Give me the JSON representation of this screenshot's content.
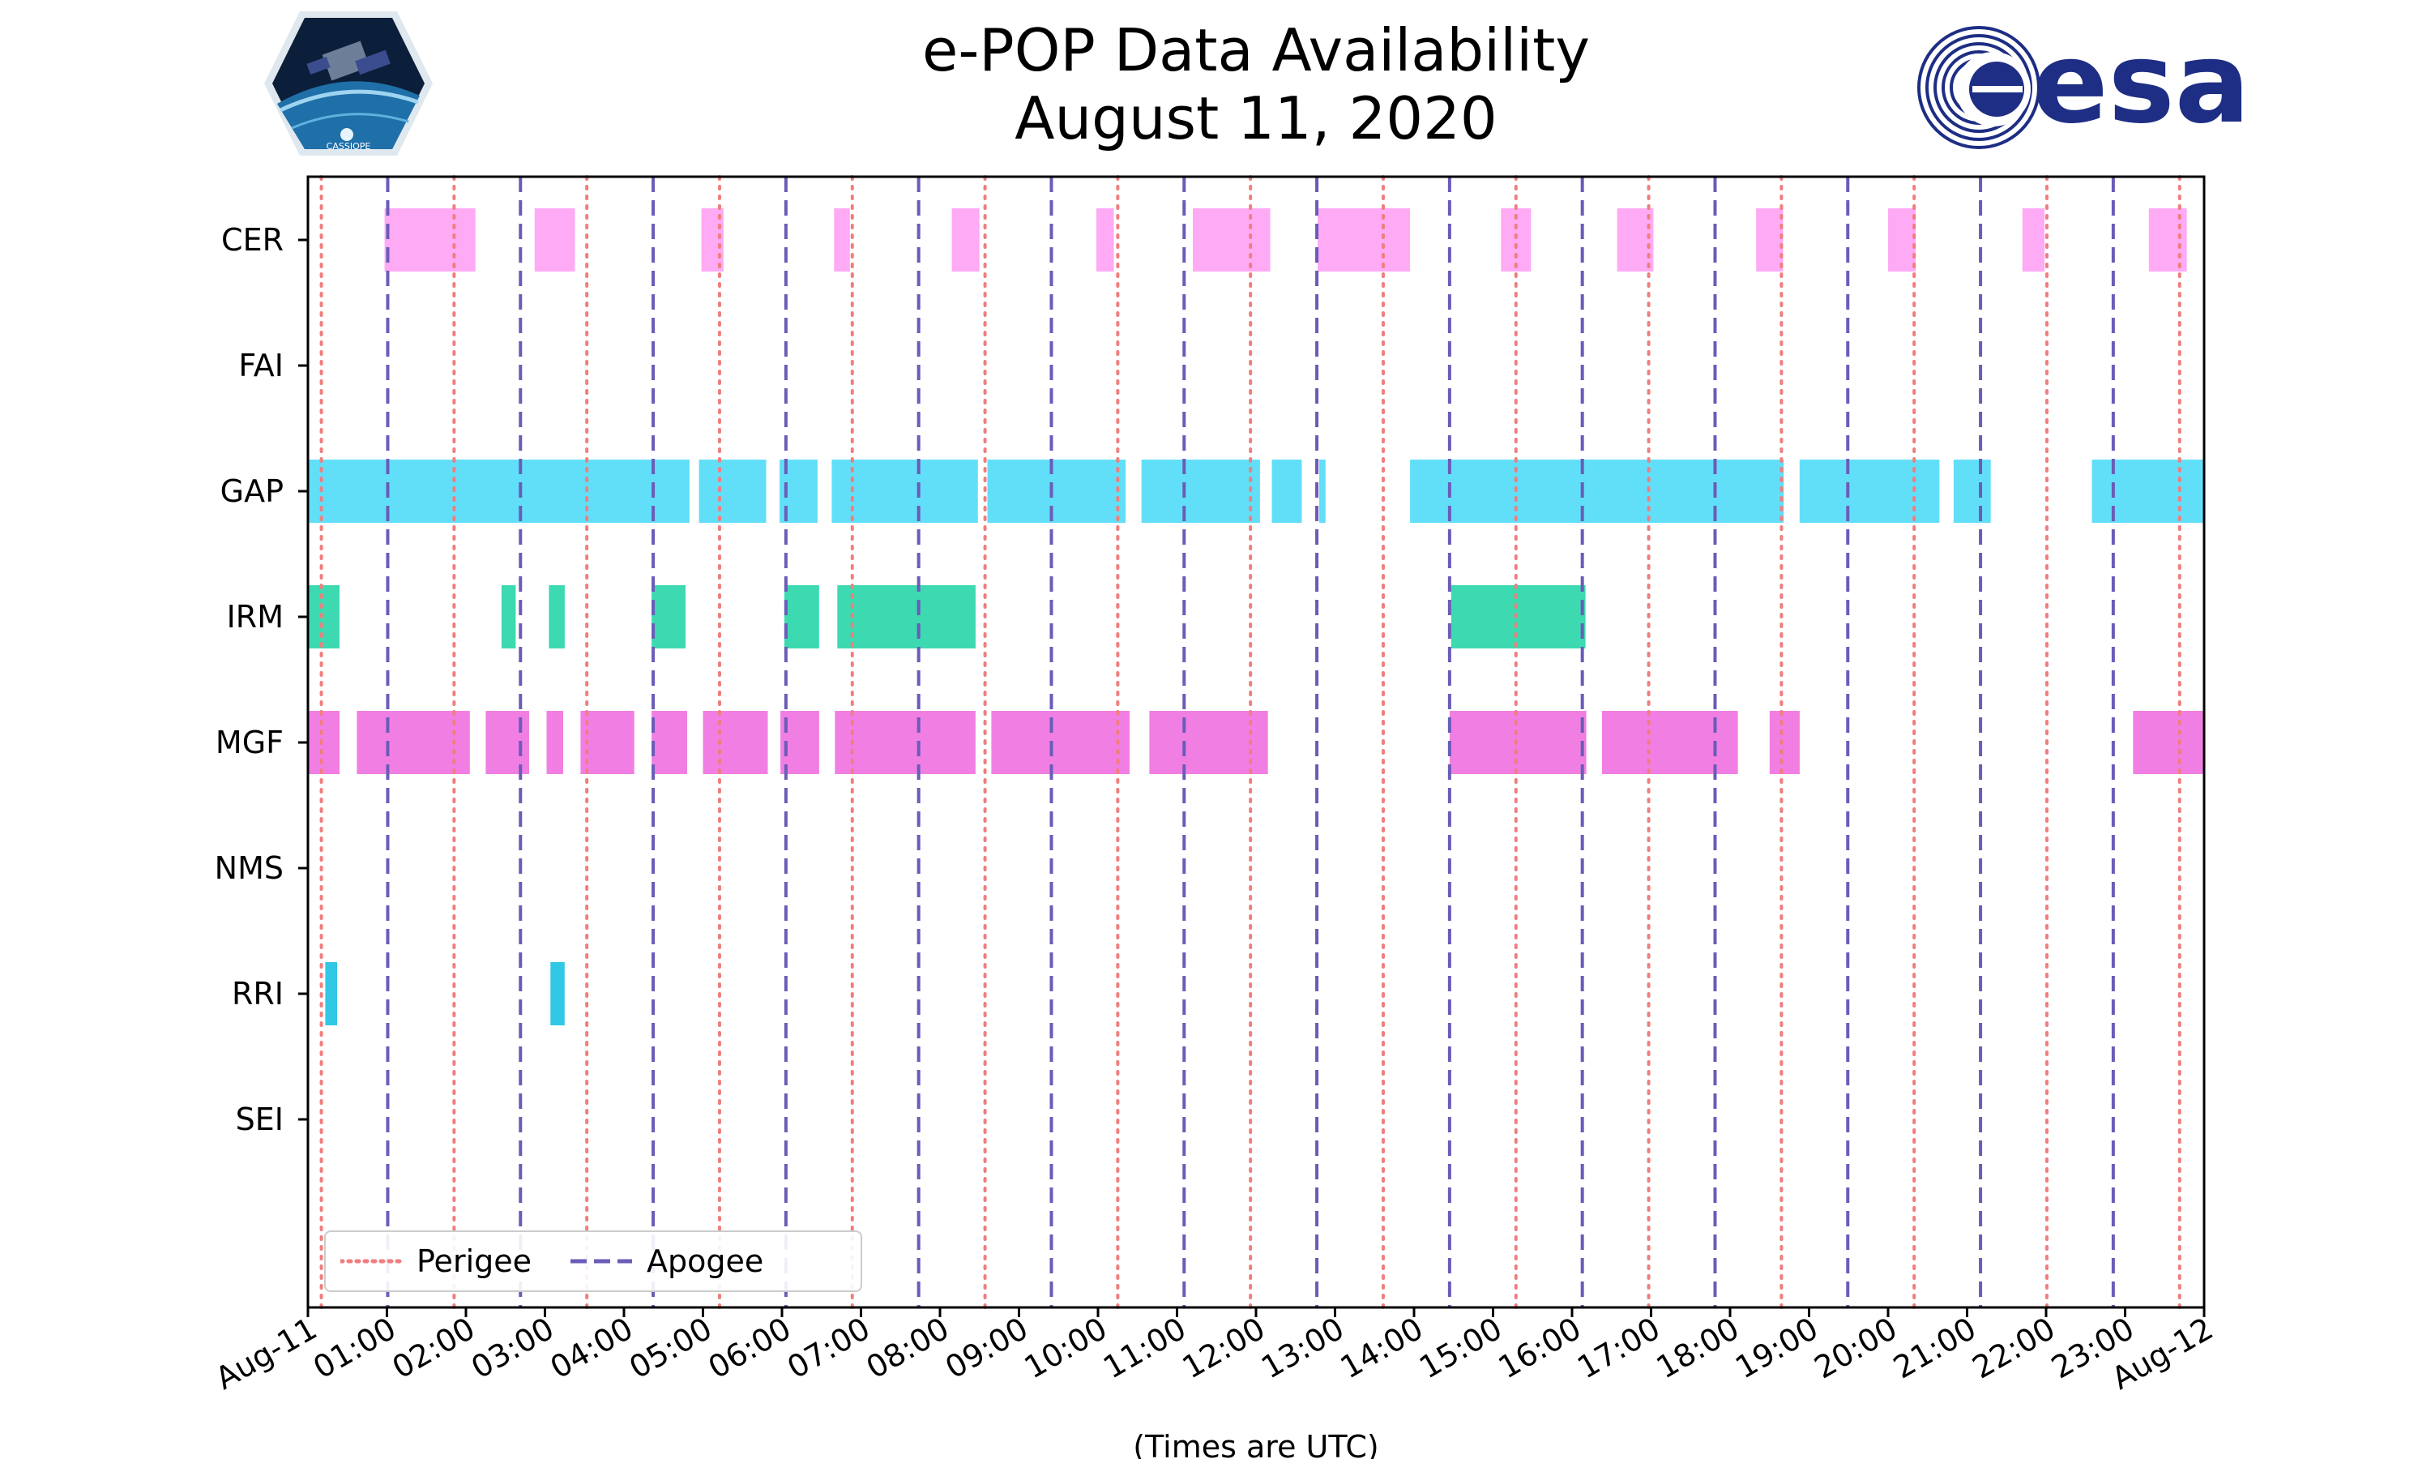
{
  "header": {
    "title_line1": "e-POP Data Availability",
    "title_line2": "August 11, 2020",
    "left_logo": {
      "icon": "cassiope-mission-logo",
      "text": "CASSIOPE"
    },
    "right_logo": {
      "icon": "esa-logo",
      "text": "esa"
    }
  },
  "legend": {
    "perigee_label": "Perigee",
    "apogee_label": "Apogee"
  },
  "colors": {
    "perigee": "#f07e7e",
    "apogee": "#6a5cb8",
    "CER": "#ffaaf5",
    "GAP": "#62dff8",
    "IRM": "#3dd9b0",
    "MGF": "#f17fe3",
    "RRI": "#31c8e5"
  },
  "chart_data": {
    "type": "timeline",
    "title": "e-POP Data Availability\nAugust 11, 2020",
    "xlabel": "(Times are UTC)",
    "xlim": [
      0,
      24
    ],
    "x_tick_labels": [
      "Aug-11",
      "01:00",
      "02:00",
      "03:00",
      "04:00",
      "05:00",
      "06:00",
      "07:00",
      "08:00",
      "09:00",
      "10:00",
      "11:00",
      "12:00",
      "13:00",
      "14:00",
      "15:00",
      "16:00",
      "17:00",
      "18:00",
      "19:00",
      "20:00",
      "21:00",
      "22:00",
      "23:00",
      "Aug-12"
    ],
    "instruments": [
      "CER",
      "FAI",
      "GAP",
      "IRM",
      "MGF",
      "NMS",
      "RRI",
      "SEI"
    ],
    "perigee_hours": [
      0.17,
      1.85,
      3.53,
      5.21,
      6.89,
      8.57,
      10.25,
      11.93,
      13.61,
      15.29,
      16.97,
      18.65,
      20.33,
      22.01,
      23.69
    ],
    "apogee_hours": [
      1.01,
      2.69,
      4.37,
      6.05,
      7.73,
      9.41,
      11.09,
      12.77,
      14.45,
      16.13,
      17.81,
      19.49,
      21.17,
      22.85
    ],
    "intervals": {
      "CER": [
        [
          0.97,
          2.12
        ],
        [
          2.87,
          3.38
        ],
        [
          4.98,
          5.26
        ],
        [
          6.66,
          6.86
        ],
        [
          8.15,
          8.5
        ],
        [
          9.98,
          10.2
        ],
        [
          11.2,
          12.18
        ],
        [
          12.78,
          13.95
        ],
        [
          15.1,
          15.48
        ],
        [
          16.57,
          17.03
        ],
        [
          18.33,
          18.67
        ],
        [
          20.0,
          20.35
        ],
        [
          21.7,
          21.98
        ],
        [
          23.3,
          23.78
        ]
      ],
      "FAI": [],
      "GAP": [
        [
          0.0,
          4.83
        ],
        [
          4.95,
          5.8
        ],
        [
          5.97,
          6.45
        ],
        [
          6.63,
          8.48
        ],
        [
          8.6,
          10.35
        ],
        [
          10.55,
          12.05
        ],
        [
          12.2,
          12.58
        ],
        [
          12.8,
          12.88
        ],
        [
          13.95,
          18.68
        ],
        [
          18.88,
          20.65
        ],
        [
          20.83,
          21.3
        ],
        [
          22.58,
          24.0
        ]
      ],
      "IRM": [
        [
          0.0,
          0.4
        ],
        [
          2.45,
          2.63
        ],
        [
          3.05,
          3.25
        ],
        [
          4.35,
          4.78
        ],
        [
          6.03,
          6.47
        ],
        [
          6.7,
          8.45
        ],
        [
          14.47,
          16.17
        ]
      ],
      "MGF": [
        [
          0.0,
          0.4
        ],
        [
          0.62,
          2.05
        ],
        [
          2.25,
          2.8
        ],
        [
          3.02,
          3.23
        ],
        [
          3.45,
          4.13
        ],
        [
          4.35,
          4.8
        ],
        [
          5.0,
          5.82
        ],
        [
          5.98,
          6.47
        ],
        [
          6.67,
          8.45
        ],
        [
          8.65,
          10.4
        ],
        [
          10.65,
          12.15
        ],
        [
          14.45,
          16.18
        ],
        [
          16.38,
          18.1
        ],
        [
          18.5,
          18.88
        ],
        [
          23.1,
          24.0
        ]
      ],
      "NMS": [],
      "RRI": [
        [
          0.22,
          0.37
        ],
        [
          3.07,
          3.25
        ]
      ],
      "SEI": []
    }
  }
}
